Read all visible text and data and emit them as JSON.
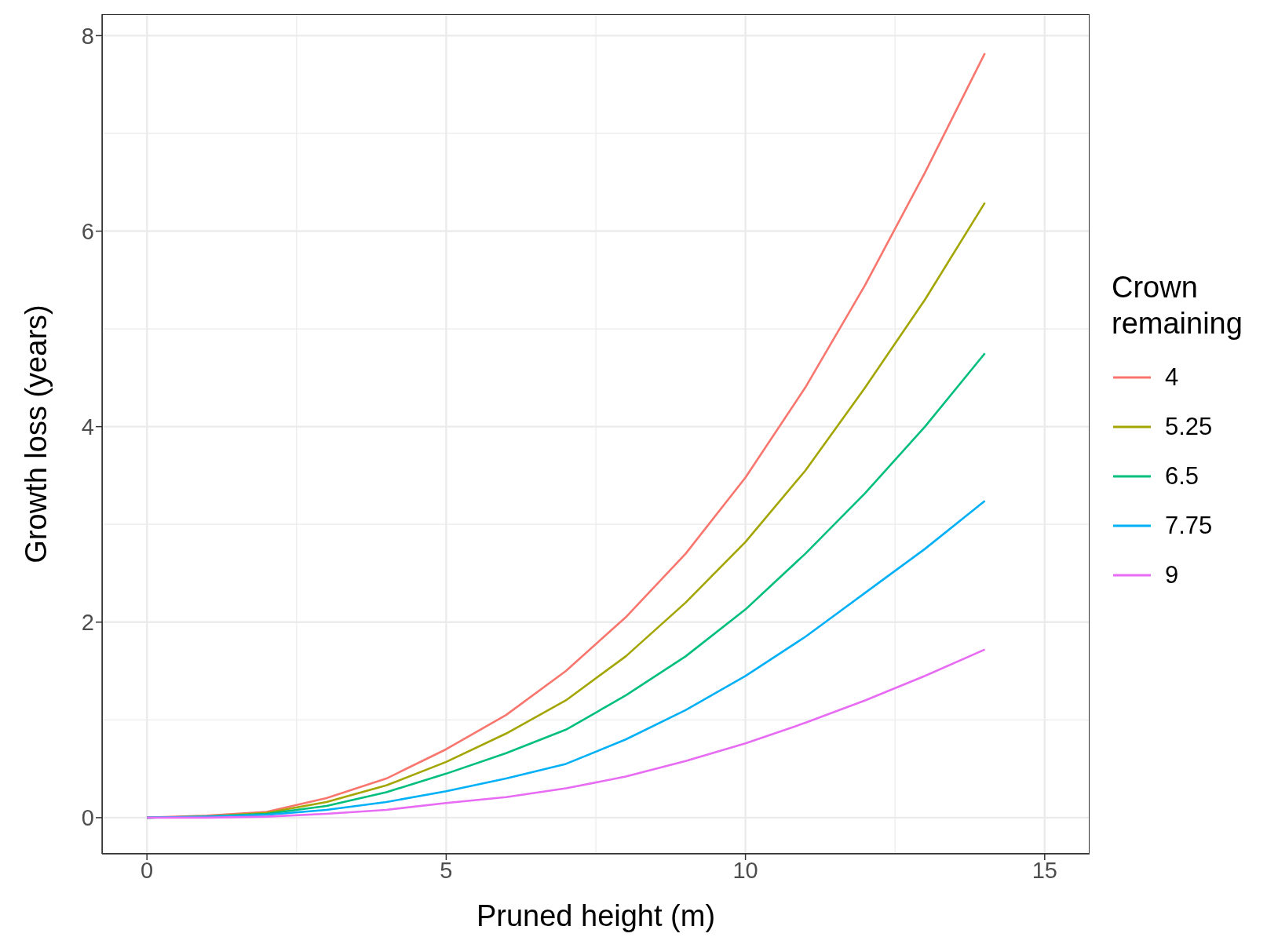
{
  "chart_data": {
    "type": "line",
    "xlabel": "Pruned height (m)",
    "ylabel": "Growth loss (years)",
    "legend_title": "Crown remaining",
    "x": [
      0,
      1,
      2,
      3,
      4,
      5,
      6,
      7,
      8,
      9,
      10,
      11,
      12,
      13,
      14
    ],
    "series": [
      {
        "name": "4",
        "color": "#f8766d",
        "values": [
          0,
          0.02,
          0.06,
          0.2,
          0.4,
          0.7,
          1.05,
          1.5,
          2.05,
          2.7,
          3.48,
          4.4,
          5.45,
          6.6,
          7.82
        ]
      },
      {
        "name": "5.25",
        "color": "#a3a500",
        "values": [
          0,
          0.01,
          0.05,
          0.16,
          0.33,
          0.57,
          0.86,
          1.2,
          1.65,
          2.2,
          2.82,
          3.55,
          4.4,
          5.3,
          6.29
        ]
      },
      {
        "name": "6.5",
        "color": "#00bf7d",
        "values": [
          0,
          0.01,
          0.04,
          0.12,
          0.26,
          0.45,
          0.66,
          0.9,
          1.25,
          1.65,
          2.13,
          2.7,
          3.32,
          4.0,
          4.75
        ]
      },
      {
        "name": "7.75",
        "color": "#00b0f6",
        "values": [
          0,
          0.01,
          0.03,
          0.08,
          0.16,
          0.27,
          0.4,
          0.55,
          0.8,
          1.1,
          1.45,
          1.85,
          2.3,
          2.75,
          3.24
        ]
      },
      {
        "name": "9",
        "color": "#e76bf3",
        "values": [
          0,
          0,
          0.01,
          0.04,
          0.08,
          0.15,
          0.21,
          0.3,
          0.42,
          0.58,
          0.76,
          0.97,
          1.2,
          1.45,
          1.72
        ]
      }
    ],
    "xlim": [
      -0.75,
      15.75
    ],
    "xticks": [
      0,
      5,
      10,
      15
    ],
    "ylim": [
      -0.37,
      8.22
    ],
    "yticks": [
      0,
      2,
      4,
      6,
      8
    ],
    "grid": true,
    "legend": "right",
    "marker": "none",
    "line_style": "solid"
  }
}
